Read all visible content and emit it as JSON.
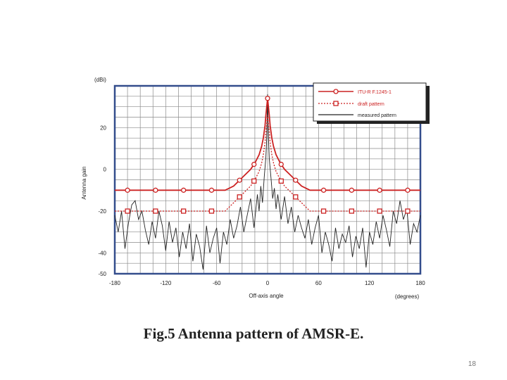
{
  "caption": "Fig.5 Antenna pattern of AMSR-E.",
  "page_number": "18",
  "chart_data": {
    "type": "line",
    "title": "",
    "xlabel": "Off-axis angle",
    "xunit": "(degrees)",
    "ylabel": "Antenna gain",
    "yunit": "(dBi)",
    "xlim": [
      -180,
      180
    ],
    "ylim": [
      -50,
      40
    ],
    "xticks": [
      -180,
      -120,
      -60,
      0,
      60,
      120,
      180
    ],
    "yticks": [
      20,
      0,
      -20,
      -40,
      -50
    ],
    "grid": true,
    "legend_position": "top-right",
    "colors": {
      "itu": "#cc2222",
      "draft": "#cc2222",
      "measured": "#222222",
      "frame": "#334d8c"
    },
    "series": [
      {
        "name": "ITU-R F.1245-1",
        "style": "solid-circle",
        "x": [
          -180,
          -168,
          -150,
          -130,
          -110,
          -90,
          -70,
          -50,
          -40,
          -30,
          -20,
          -15,
          -10,
          -7,
          -5,
          -3,
          -2,
          -1,
          0,
          1,
          2,
          3,
          5,
          7,
          10,
          15,
          20,
          30,
          40,
          50,
          70,
          90,
          110,
          130,
          150,
          168,
          180
        ],
        "y": [
          -10,
          -10,
          -10,
          -10,
          -10,
          -10,
          -10,
          -10,
          -8,
          -4,
          0,
          3,
          7,
          11,
          15,
          21,
          26,
          30,
          34,
          30,
          26,
          21,
          15,
          11,
          7,
          3,
          0,
          -4,
          -8,
          -10,
          -10,
          -10,
          -10,
          -10,
          -10,
          -10,
          -10
        ],
        "marker_x": [
          -165,
          -132,
          -99,
          -66,
          -33,
          -16,
          0,
          16,
          33,
          66,
          99,
          132,
          165
        ]
      },
      {
        "name": "draft pattern",
        "style": "dotted-square",
        "x": [
          -180,
          -165,
          -150,
          -130,
          -110,
          -90,
          -70,
          -50,
          -40,
          -30,
          -20,
          -15,
          -10,
          -7,
          -5,
          -3,
          -2,
          -1,
          0,
          1,
          2,
          3,
          5,
          7,
          10,
          15,
          20,
          30,
          40,
          50,
          70,
          90,
          110,
          130,
          150,
          165,
          180
        ],
        "y": [
          -20,
          -20,
          -20,
          -20,
          -20,
          -20,
          -20,
          -20,
          -16,
          -12,
          -8,
          -5,
          -1,
          3,
          7,
          13,
          18,
          22,
          26,
          22,
          18,
          13,
          7,
          3,
          -1,
          -5,
          -8,
          -12,
          -16,
          -20,
          -20,
          -20,
          -20,
          -20,
          -20,
          -20,
          -20
        ],
        "marker_x": [
          -165,
          -132,
          -99,
          -66,
          -33,
          -16,
          16,
          33,
          66,
          99,
          132,
          165
        ]
      },
      {
        "name": "measured pattern",
        "style": "solid",
        "x": [
          -180,
          -176,
          -172,
          -168,
          -164,
          -160,
          -156,
          -152,
          -148,
          -144,
          -140,
          -136,
          -132,
          -128,
          -124,
          -120,
          -116,
          -112,
          -108,
          -104,
          -100,
          -96,
          -92,
          -88,
          -84,
          -80,
          -76,
          -72,
          -68,
          -64,
          -60,
          -56,
          -52,
          -48,
          -44,
          -40,
          -36,
          -32,
          -28,
          -24,
          -20,
          -16,
          -12,
          -10,
          -8,
          -6,
          -4,
          -2,
          -1,
          0,
          1,
          2,
          4,
          6,
          8,
          10,
          12,
          16,
          20,
          24,
          28,
          32,
          36,
          40,
          44,
          48,
          52,
          56,
          60,
          64,
          68,
          72,
          76,
          80,
          84,
          88,
          92,
          96,
          100,
          104,
          108,
          112,
          116,
          120,
          124,
          128,
          132,
          136,
          140,
          144,
          148,
          152,
          156,
          160,
          164,
          168,
          172,
          176,
          180
        ],
        "y": [
          -22,
          -30,
          -20,
          -38,
          -26,
          -17,
          -15,
          -24,
          -20,
          -29,
          -36,
          -25,
          -33,
          -20,
          -27,
          -39,
          -25,
          -35,
          -28,
          -42,
          -30,
          -38,
          -26,
          -44,
          -31,
          -37,
          -48,
          -27,
          -40,
          -33,
          -28,
          -45,
          -30,
          -36,
          -24,
          -33,
          -27,
          -18,
          -30,
          -22,
          -14,
          -28,
          -12,
          -20,
          -8,
          -16,
          -4,
          6,
          15,
          36,
          16,
          5,
          -4,
          -14,
          -9,
          -19,
          -12,
          -24,
          -13,
          -26,
          -18,
          -30,
          -22,
          -28,
          -33,
          -24,
          -36,
          -28,
          -22,
          -40,
          -30,
          -36,
          -44,
          -28,
          -38,
          -31,
          -35,
          -27,
          -42,
          -32,
          -38,
          -28,
          -47,
          -30,
          -36,
          -25,
          -33,
          -22,
          -29,
          -37,
          -20,
          -26,
          -15,
          -24,
          -19,
          -36,
          -26,
          -30,
          -22
        ]
      }
    ]
  }
}
